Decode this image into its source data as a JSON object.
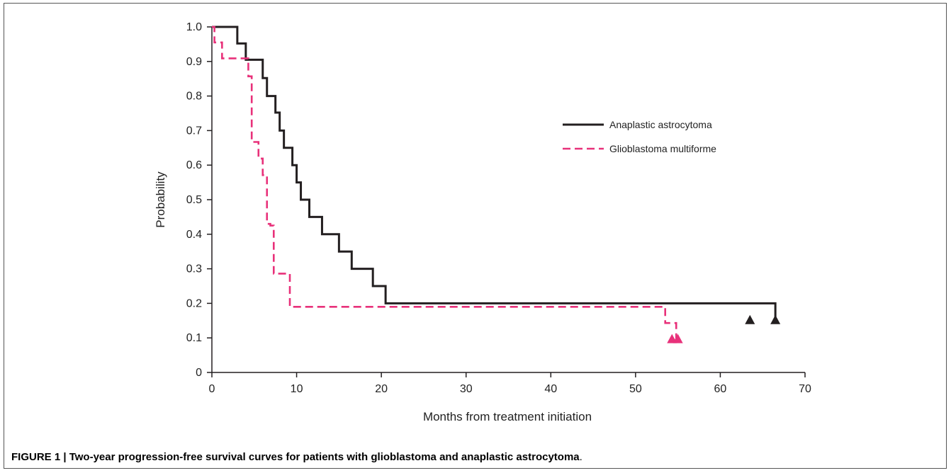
{
  "caption": {
    "lead": "FIGURE 1 | Two-year progression-free survival curves for patients with glioblastoma and anaplastic astrocytoma",
    "tail": "."
  },
  "chart_data": {
    "type": "line",
    "step": true,
    "xlabel": "Months from treatment initiation",
    "ylabel": "Probability",
    "xlim": [
      0,
      70
    ],
    "ylim": [
      0,
      1.0
    ],
    "xticks": [
      0,
      10,
      20,
      30,
      40,
      50,
      60,
      70
    ],
    "yticks": [
      0,
      0.1,
      0.2,
      0.3,
      0.4,
      0.5,
      0.6,
      0.7,
      0.8,
      0.9,
      1.0
    ],
    "ytick_labels": [
      "0",
      "0.1",
      "0.2",
      "0.3",
      "0.4",
      "0.5",
      "0.6",
      "0.7",
      "0.8",
      "0.9",
      "1.0"
    ],
    "grid": false,
    "legend_position": "right",
    "series": [
      {
        "name": "Anaplastic astrocytoma",
        "color": "#231f20",
        "dash": "solid",
        "x": [
          0,
          3,
          4,
          6,
          6.5,
          7.5,
          8,
          8.5,
          9.5,
          10,
          10.5,
          11.5,
          13,
          15,
          16.5,
          19,
          20.5,
          66.5
        ],
        "y": [
          1.0,
          0.952,
          0.905,
          0.852,
          0.8,
          0.752,
          0.7,
          0.65,
          0.6,
          0.55,
          0.5,
          0.45,
          0.4,
          0.35,
          0.3,
          0.25,
          0.2,
          0.15
        ],
        "censored": [
          {
            "x": 63.5,
            "y": 0.15
          },
          {
            "x": 66.5,
            "y": 0.15
          }
        ]
      },
      {
        "name": "Glioblastoma multiforme",
        "color": "#e8317a",
        "dash": "dashed",
        "x": [
          0,
          0.3,
          1.2,
          4.3,
          4.7,
          5.5,
          6.0,
          6.5,
          6.9,
          7.3,
          8.8,
          9.2,
          29.7,
          53.5,
          54.8
        ],
        "y": [
          1.0,
          0.955,
          0.909,
          0.857,
          0.667,
          0.619,
          0.571,
          0.43,
          0.425,
          0.286,
          0.286,
          0.19,
          0.19,
          0.143,
          0.095
        ],
        "censored": [
          {
            "x": 54.3,
            "y": 0.095
          },
          {
            "x": 55.0,
            "y": 0.095
          }
        ]
      }
    ]
  }
}
